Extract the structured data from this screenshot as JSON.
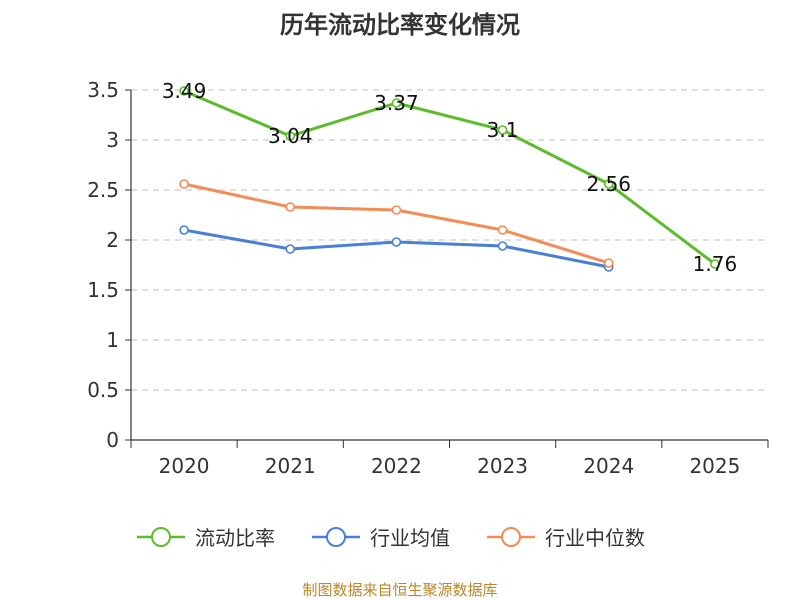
{
  "chart_data": {
    "type": "line",
    "title": "历年流动比率变化情况",
    "categories": [
      "2020",
      "2021",
      "2022",
      "2023",
      "2024",
      "2025"
    ],
    "ylim": [
      0,
      3.5
    ],
    "yticks": [
      "0",
      "0.5",
      "1",
      "1.5",
      "2",
      "2.5",
      "3",
      "3.5"
    ],
    "grid": true,
    "legend_position": "bottom",
    "series": [
      {
        "name": "流动比率",
        "color": "#5bbd2b",
        "values": [
          3.49,
          3.04,
          3.37,
          3.1,
          2.56,
          1.76
        ],
        "labels": [
          "3.49",
          "3.04",
          "3.37",
          "3.1",
          "2.56",
          "1.76"
        ]
      },
      {
        "name": "行业均值",
        "color": "#4a7fd8",
        "values": [
          2.1,
          1.91,
          1.98,
          1.94,
          1.73,
          null
        ]
      },
      {
        "name": "行业中位数",
        "color": "#f58b55",
        "values": [
          2.56,
          2.33,
          2.3,
          2.1,
          1.77,
          null
        ]
      }
    ]
  },
  "source_text": "制图数据来自恒生聚源数据库"
}
